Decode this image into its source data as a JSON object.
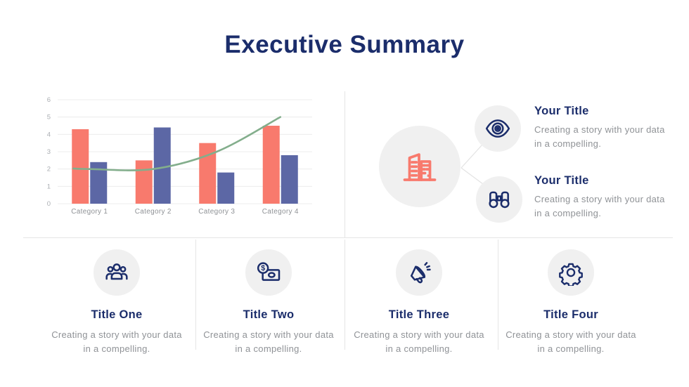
{
  "slide": {
    "title": "Executive Summary"
  },
  "colors": {
    "navy": "#1B2D6B",
    "coral": "#F87A6D",
    "purple": "#5C67A5",
    "green": "#83AE8C",
    "body_gray": "#8F9296",
    "circle_bg": "#F0F0F0",
    "divider": "#E5E5E5",
    "gridline": "#ECECEC",
    "tick_gray": "#ABAEB3"
  },
  "chart_data": {
    "type": "combo",
    "categories": [
      "Category 1",
      "Category 2",
      "Category 3",
      "Category 4"
    ],
    "series": [
      {
        "id": "bars-coral",
        "type": "bar",
        "color": "#F87A6D",
        "values": [
          4.3,
          2.5,
          3.5,
          4.5
        ]
      },
      {
        "id": "bars-purple",
        "type": "bar",
        "color": "#5C67A5",
        "values": [
          2.4,
          4.4,
          1.8,
          2.8
        ]
      },
      {
        "id": "trend-line",
        "type": "line",
        "color": "#83AE8C",
        "values": [
          2,
          2,
          3,
          5
        ]
      }
    ],
    "ylim": [
      0,
      6
    ],
    "yticks": [
      0,
      1,
      2,
      3,
      4,
      5,
      6
    ],
    "grid": true,
    "legend": false,
    "title": "",
    "xlabel": "",
    "ylabel": ""
  },
  "feature_panel": {
    "hub_icon": "building-icon",
    "items": [
      {
        "icon": "eye-icon",
        "title": "Your Title",
        "body": "Creating a story with your data in a compelling."
      },
      {
        "icon": "binoculars-icon",
        "title": "Your Title",
        "body": "Creating a story with your data in a compelling."
      }
    ]
  },
  "bottom_columns": [
    {
      "icon": "people-group-icon",
      "title": "Title One",
      "body": "Creating a story with your data in a compelling."
    },
    {
      "icon": "money-icon",
      "title": "Title Two",
      "body": "Creating a story with your data in a compelling."
    },
    {
      "icon": "megaphone-icon",
      "title": "Title Three",
      "body": "Creating a story with your data in a compelling."
    },
    {
      "icon": "gear-icon",
      "title": "Title Four",
      "body": "Creating a story with your data in a compelling."
    }
  ]
}
